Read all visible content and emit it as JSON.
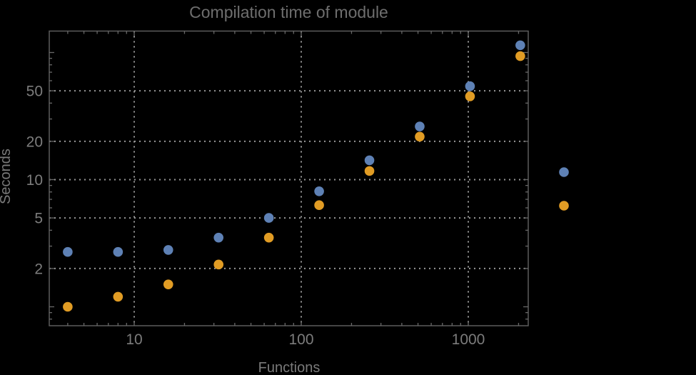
{
  "chart_data": {
    "type": "scatter",
    "title": "Compilation time of module",
    "xlabel": "Functions",
    "ylabel": "Seconds",
    "x_scale": "log",
    "y_scale": "log",
    "x_range": [
      3.15,
      2280
    ],
    "y_range": [
      0.72,
      150
    ],
    "x_tick_labels": [
      "10",
      "100",
      "1000"
    ],
    "y_tick_labels": [
      "2",
      "5",
      "10",
      "20",
      "50"
    ],
    "x_tick_values": [
      10,
      100,
      1000
    ],
    "y_tick_values": [
      2,
      5,
      10,
      20,
      50
    ],
    "y_unlabeled_major_ticks": [
      1,
      100
    ],
    "grid": {
      "style": "dotted",
      "x_values": [
        10,
        100,
        1000
      ],
      "y_values": [
        2,
        5,
        10,
        20,
        50
      ]
    },
    "x": [
      4,
      8,
      16,
      32,
      64,
      128,
      256,
      512,
      1024,
      2048
    ],
    "series": [
      {
        "name": "series-1-blue",
        "color": "#5e81b5",
        "values": [
          2.7,
          2.7,
          2.8,
          3.5,
          5.0,
          8.1,
          14.2,
          26.2,
          54.3,
          114
        ]
      },
      {
        "name": "series-2-orange",
        "color": "#e19c24",
        "values": [
          1.0,
          1.2,
          1.5,
          2.15,
          3.5,
          6.3,
          11.7,
          21.8,
          45.2,
          93.7
        ]
      }
    ],
    "legend": {
      "position": "right-outside",
      "markers": [
        {
          "name": "series-1-marker",
          "color": "#5e81b5"
        },
        {
          "name": "series-2-marker",
          "color": "#e19c24"
        }
      ]
    }
  },
  "colors": {
    "background": "#000000",
    "frame": "#5c5c5c",
    "tick": "#686868",
    "grid": "#999999",
    "tick_label": "#7c7c7c",
    "axis_label": "#7a7a7a",
    "title": "#6e6e6e"
  }
}
